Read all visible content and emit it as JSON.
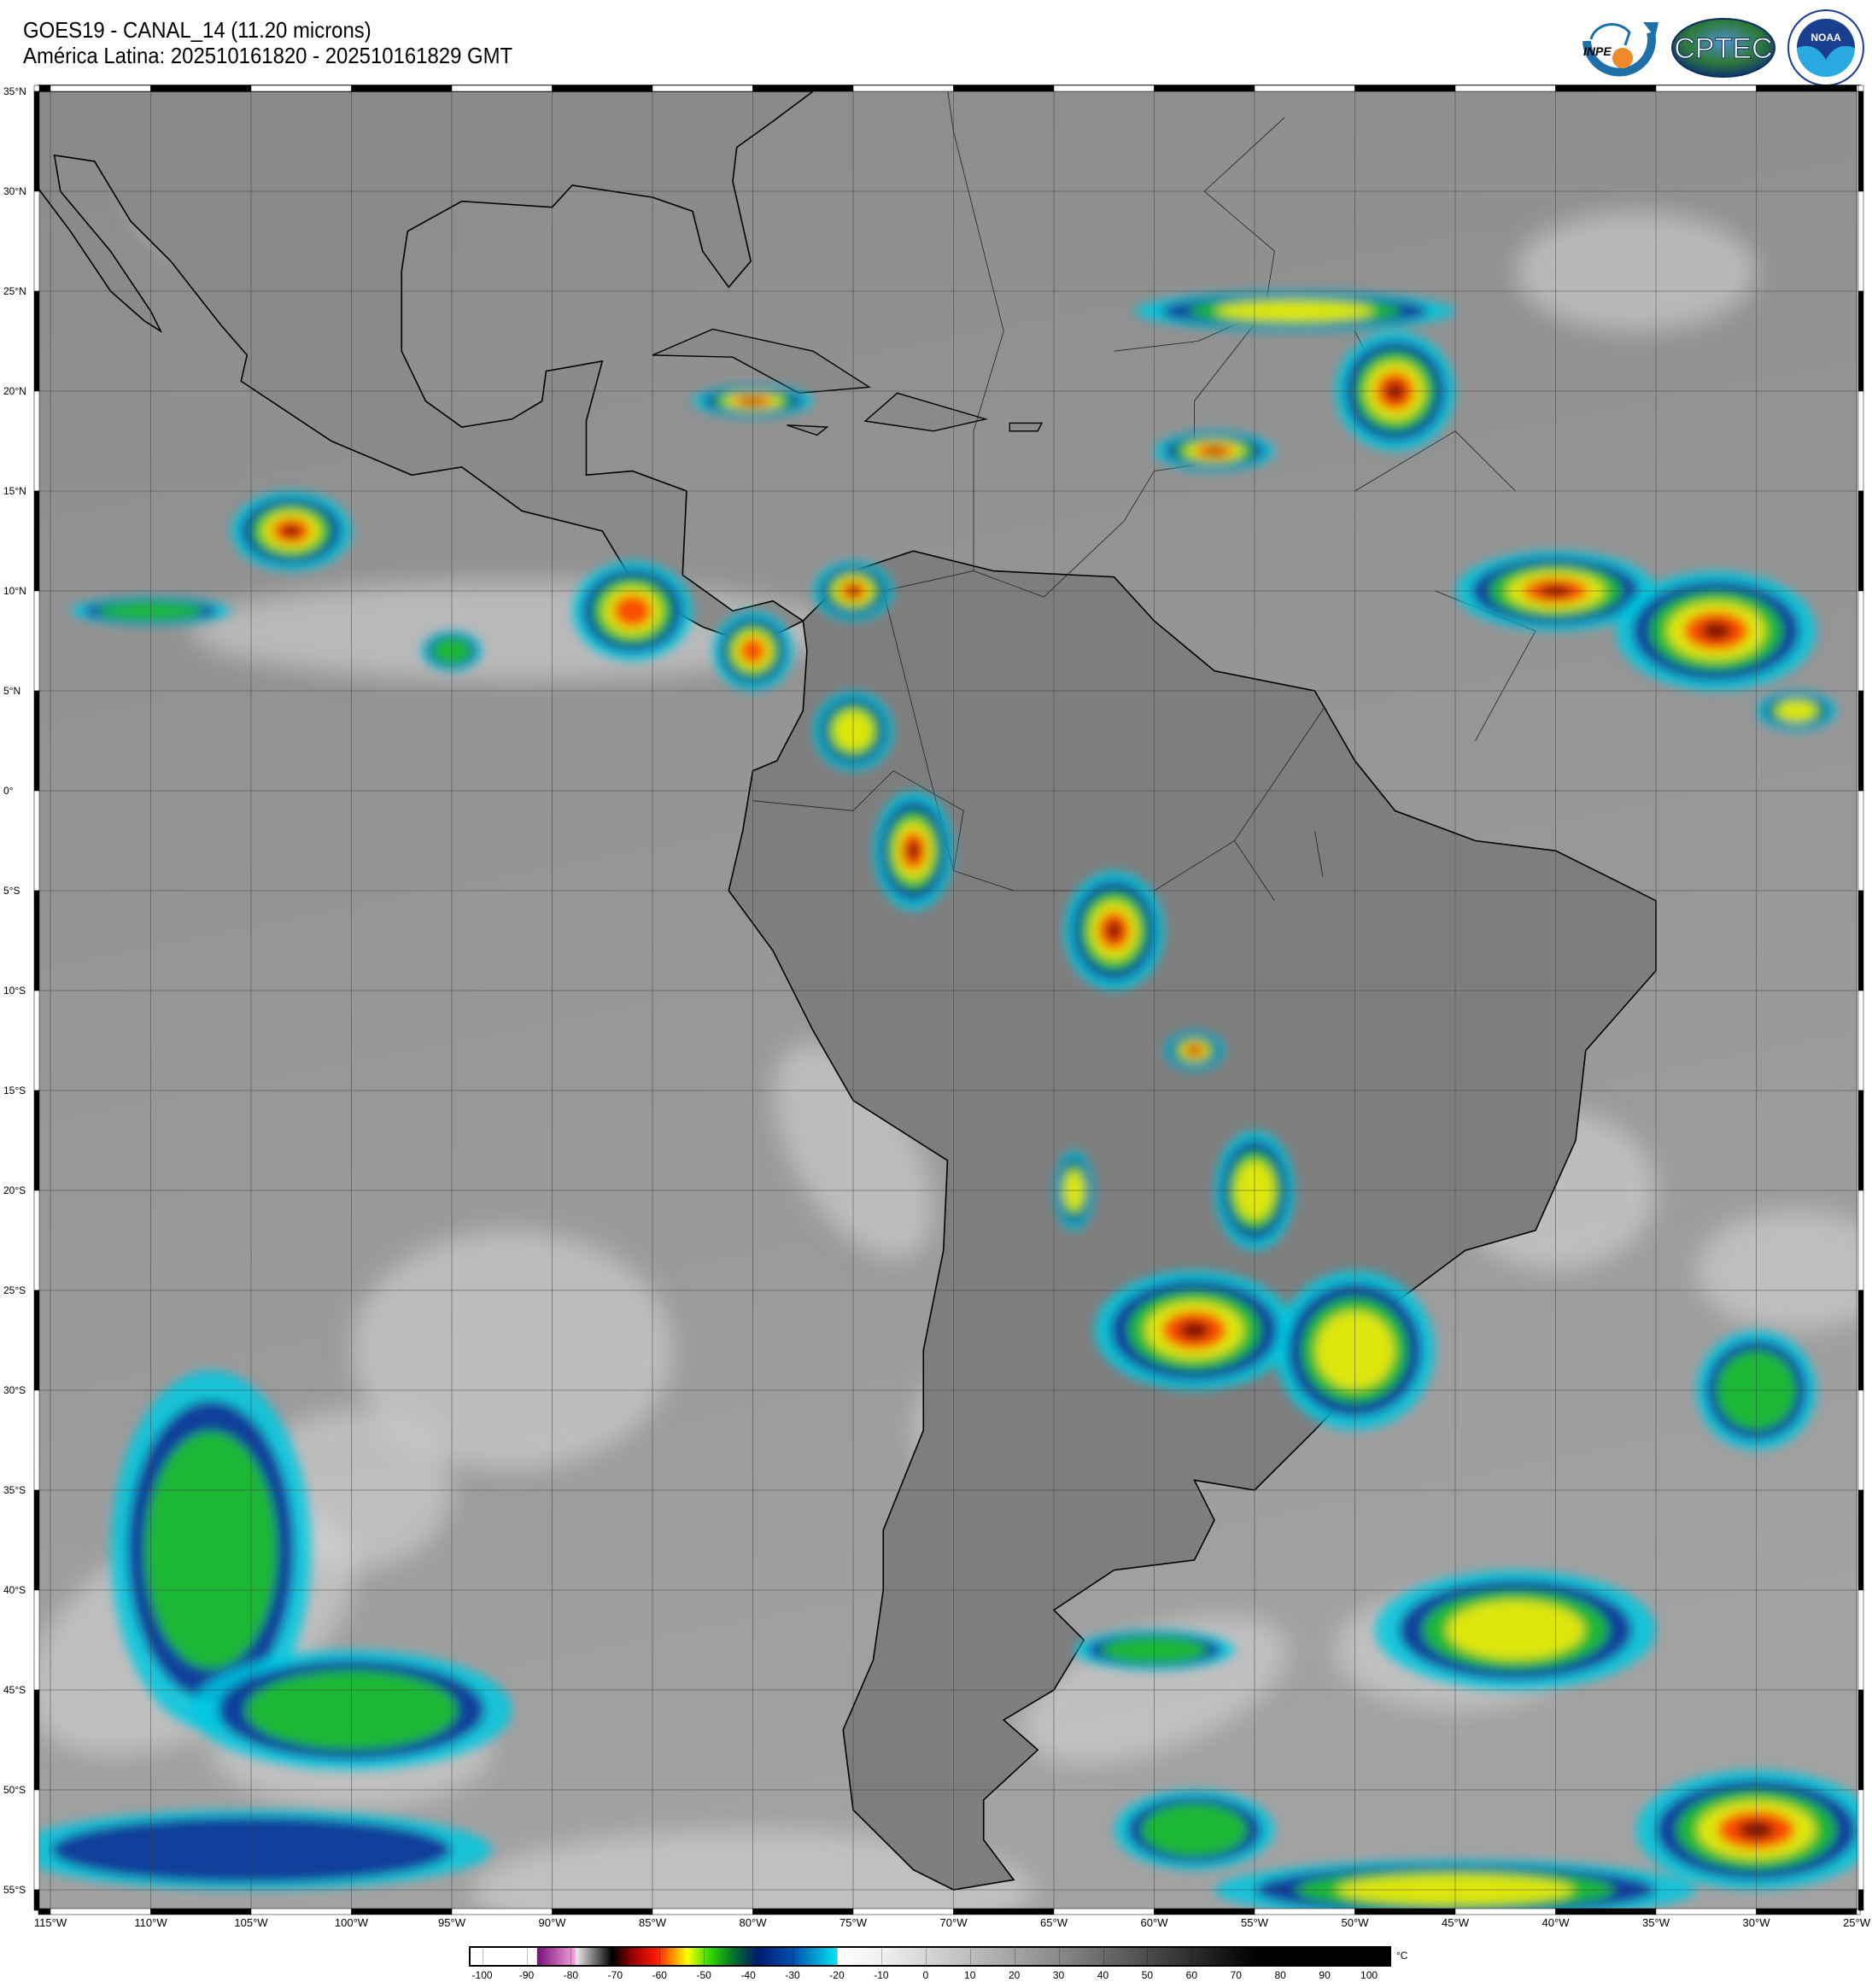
{
  "header": {
    "title": "GOES19 - CANAL_14 (11.20 microns)",
    "subtitle": "América Latina: 202510161820 - 202510161829 GMT"
  },
  "logos": [
    {
      "name": "INPE",
      "text": "INPE",
      "colors": [
        "#1f6fa8",
        "#ef8a2a"
      ]
    },
    {
      "name": "CPTEC",
      "text": "CPTEC",
      "colors": [
        "#1b4f8a",
        "#3a8c3a"
      ]
    },
    {
      "name": "NOAA",
      "text": "NOAA",
      "colors": [
        "#1a3f8f",
        "#2aa8e0"
      ]
    }
  ],
  "map": {
    "lat_labels": [
      "35°N",
      "30°N",
      "25°N",
      "20°N",
      "15°N",
      "10°N",
      "5°N",
      "0°",
      "5°S",
      "10°S",
      "15°S",
      "20°S",
      "25°S",
      "30°S",
      "35°S",
      "40°S",
      "45°S",
      "50°S",
      "55°S"
    ],
    "lon_labels": [
      "115°W",
      "110°W",
      "105°W",
      "100°W",
      "95°W",
      "90°W",
      "85°W",
      "80°W",
      "75°W",
      "70°W",
      "65°W",
      "60°W",
      "55°W",
      "50°W",
      "45°W",
      "40°W",
      "35°W",
      "30°W",
      "25°W"
    ]
  },
  "colorbar": {
    "unit": "°C",
    "ticks": [
      "-100",
      "-90",
      "-80",
      "-70",
      "-60",
      "-50",
      "-40",
      "-30",
      "-20",
      "-10",
      "0",
      "10",
      "20",
      "30",
      "40",
      "50",
      "60",
      "70",
      "80",
      "90",
      "100"
    ],
    "range": [
      -103,
      105
    ],
    "stops": [
      {
        "t": -103,
        "c": "#ffffff"
      },
      {
        "t": -88,
        "c": "#ffffff"
      },
      {
        "t": -87.9,
        "c": "#7a0f7a"
      },
      {
        "t": -79.5,
        "c": "#f0a0d8"
      },
      {
        "t": -79,
        "c": "#e8e8e8"
      },
      {
        "t": -72,
        "c": "#202020"
      },
      {
        "t": -71,
        "c": "#000000"
      },
      {
        "t": -66,
        "c": "#a00000"
      },
      {
        "t": -61,
        "c": "#ff1a00"
      },
      {
        "t": -57,
        "c": "#ff9900"
      },
      {
        "t": -54,
        "c": "#ffff00"
      },
      {
        "t": -49,
        "c": "#33dd00"
      },
      {
        "t": -43,
        "c": "#006a30"
      },
      {
        "t": -38,
        "c": "#001a70"
      },
      {
        "t": -30,
        "c": "#0050b0"
      },
      {
        "t": -20.1,
        "c": "#00e5f0"
      },
      {
        "t": -20,
        "c": "#ffffff"
      },
      {
        "t": -10,
        "c": "#f0f0f0"
      },
      {
        "t": 30,
        "c": "#8a8a8a"
      },
      {
        "t": 75,
        "c": "#000000"
      },
      {
        "t": 105,
        "c": "#000000"
      }
    ]
  }
}
